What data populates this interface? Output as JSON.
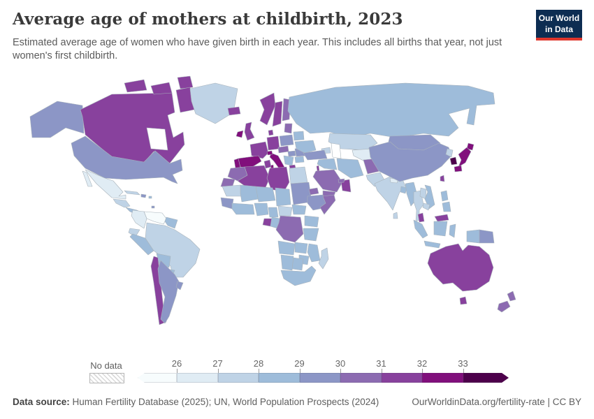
{
  "header": {
    "title": "Average age of mothers at childbirth, 2023",
    "subtitle": "Estimated average age of women who have given birth in each year. This includes all births that year, not just women's first childbirth.",
    "logo": {
      "line1": "Our World",
      "line2": "in Data",
      "bg_color": "#0d2d52",
      "accent_color": "#e0362c"
    }
  },
  "legend": {
    "no_data_label": "No data",
    "tick_labels": [
      "26",
      "27",
      "28",
      "29",
      "30",
      "31",
      "32",
      "33"
    ],
    "bin_colors": [
      "#f7fcfd",
      "#e0ecf4",
      "#bfd3e6",
      "#9ebcda",
      "#8c96c6",
      "#8c6bb1",
      "#88419d",
      "#810f7c",
      "#4d004b"
    ],
    "bin_ranges": [
      "<26",
      "26-27",
      "27-28",
      "28-29",
      "29-30",
      "30-31",
      "31-32",
      "32-33",
      ">33"
    ],
    "no_data_style": {
      "border": "#b5b5b5",
      "stripe": "#d9d9d9"
    }
  },
  "footer": {
    "source_label": "Data source:",
    "source_text": " Human Fertility Database (2025); UN, World Population Prospects (2024)",
    "credit_text": "OurWorldinData.org/fertility-rate | CC BY"
  },
  "map": {
    "stroke_color": "#a9b3bb",
    "ocean_color": "#ffffff"
  },
  "chart_data": {
    "type": "heatmap",
    "subtype": "choropleth-world-map",
    "title": "Average age of mothers at childbirth, 2023",
    "unit": "years",
    "bins": [
      "<26",
      "26-27",
      "27-28",
      "28-29",
      "29-30",
      "30-31",
      "31-32",
      "32-33",
      ">33"
    ],
    "bin_colors": [
      "#f7fcfd",
      "#e0ecf4",
      "#bfd3e6",
      "#9ebcda",
      "#8c96c6",
      "#8c6bb1",
      "#88419d",
      "#810f7c",
      "#4d004b"
    ],
    "no_data_label": "No data",
    "legend_position": "bottom",
    "regions": {
      "alaska": [
        "United States (Alaska)",
        4
      ],
      "canada": [
        "Canada",
        6
      ],
      "arctic-island-1": [
        "Canada",
        6
      ],
      "arctic-island-2": [
        "Canada",
        6
      ],
      "arctic-island-3": [
        "Canada",
        6
      ],
      "baffin": [
        "Canada",
        6
      ],
      "greenland": [
        "Greenland",
        2
      ],
      "usa": [
        "United States",
        4
      ],
      "mexico": [
        "Mexico",
        1
      ],
      "baja": [
        "Mexico",
        1
      ],
      "central-america-north": [
        "Guatemala/Honduras",
        2
      ],
      "central-america-south": [
        "Costa Rica/Panama",
        3
      ],
      "cuba": [
        "Cuba",
        2
      ],
      "hispaniola": [
        "Dominican Republic",
        4
      ],
      "puerto-rico": [
        "Puerto Rico",
        3
      ],
      "trinidad": [
        "Trinidad and Tobago",
        4
      ],
      "venezuela": [
        "Venezuela",
        0
      ],
      "colombia": [
        "Colombia",
        1
      ],
      "guianas": [
        "Guyana/Suriname",
        3
      ],
      "ecuador": [
        "Ecuador",
        2
      ],
      "peru": [
        "Peru",
        3
      ],
      "brazil": [
        "Brazil",
        2
      ],
      "bolivia": [
        "Bolivia",
        3
      ],
      "paraguay": [
        "Paraguay",
        3
      ],
      "chile": [
        "Chile",
        6
      ],
      "argentina": [
        "Argentina",
        4
      ],
      "uruguay": [
        "Uruguay",
        4
      ],
      "iceland": [
        "Iceland",
        6
      ],
      "ireland": [
        "Ireland",
        7
      ],
      "uk": [
        "United Kingdom",
        6
      ],
      "norway": [
        "Norway",
        6
      ],
      "sweden": [
        "Sweden",
        6
      ],
      "finland": [
        "Finland",
        5
      ],
      "denmark": [
        "Denmark",
        6
      ],
      "baltics": [
        "Baltic states",
        5
      ],
      "poland": [
        "Poland",
        4
      ],
      "germany": [
        "Germany",
        6
      ],
      "france": [
        "France",
        6
      ],
      "spain": [
        "Spain",
        7
      ],
      "portugal": [
        "Portugal",
        7
      ],
      "italy": [
        "Italy",
        7
      ],
      "sicily": [
        "Italy",
        7
      ],
      "sardinia": [
        "Italy",
        7
      ],
      "switzerland": [
        "Switzerland",
        7
      ],
      "austria-czechia": [
        "Austria/Czechia",
        5
      ],
      "hungary": [
        "Hungary",
        4
      ],
      "balkans": [
        "Western Balkans",
        3
      ],
      "romania": [
        "Romania",
        4
      ],
      "bulgaria": [
        "Bulgaria",
        3
      ],
      "greece": [
        "Greece",
        6
      ],
      "belarus": [
        "Belarus",
        3
      ],
      "ukraine": [
        "Ukraine",
        3
      ],
      "russia": [
        "Russia",
        3
      ],
      "kazakhstan": [
        "Kazakhstan",
        2
      ],
      "central-asia": [
        "Central Asia",
        1
      ],
      "caucasus": [
        "Caucasus",
        2
      ],
      "turkey": [
        "Turkey",
        4
      ],
      "syria-iraq": [
        "Syria/Iraq",
        3
      ],
      "israel": [
        "Israel",
        6
      ],
      "saudi-arabia": [
        "Saudi Arabia",
        5
      ],
      "yemen": [
        "Yemen",
        5
      ],
      "oman": [
        "Oman",
        6
      ],
      "uae": [
        "United Arab Emirates",
        5
      ],
      "iran": [
        "Iran",
        3
      ],
      "afghanistan": [
        "Afghanistan",
        5
      ],
      "pakistan": [
        "Pakistan",
        2
      ],
      "india": [
        "India",
        2
      ],
      "nepal": [
        "Nepal",
        1
      ],
      "bangladesh": [
        "Bangladesh",
        3
      ],
      "sri-lanka": [
        "Sri Lanka",
        2
      ],
      "mongolia": [
        "Mongolia",
        4
      ],
      "china": [
        "China",
        4
      ],
      "north-korea": [
        "North Korea",
        2
      ],
      "south-korea": [
        "South Korea",
        8
      ],
      "japan-hokkaido": [
        "Japan",
        7
      ],
      "japan-honshu": [
        "Japan",
        7
      ],
      "japan-kyushu": [
        "Japan",
        7
      ],
      "taiwan": [
        "Taiwan",
        6
      ],
      "myanmar": [
        "Myanmar",
        3
      ],
      "thailand": [
        "Thailand",
        2
      ],
      "laos": [
        "Laos",
        2
      ],
      "vietnam": [
        "Vietnam",
        3
      ],
      "cambodia": [
        "Cambodia",
        2
      ],
      "malaysia-peninsula": [
        "Malaysia",
        6
      ],
      "malaysia-borneo": [
        "Malaysia",
        6
      ],
      "sumatra": [
        "Indonesia",
        3
      ],
      "java": [
        "Indonesia",
        3
      ],
      "kalimantan": [
        "Indonesia",
        3
      ],
      "sulawesi": [
        "Indonesia",
        3
      ],
      "west-new-guinea": [
        "Indonesia",
        3
      ],
      "papua-new-guinea": [
        "Papua New Guinea",
        4
      ],
      "philippines-north": [
        "Philippines",
        3
      ],
      "philippines-south": [
        "Philippines",
        3
      ],
      "morocco": [
        "Morocco",
        5
      ],
      "western-sahara": [
        "Western Sahara",
        5
      ],
      "algeria": [
        "Algeria",
        6
      ],
      "tunisia": [
        "Tunisia",
        6
      ],
      "libya": [
        "Libya",
        6
      ],
      "egypt": [
        "Egypt",
        2
      ],
      "mauritania": [
        "Mauritania",
        2
      ],
      "mali": [
        "Mali",
        3
      ],
      "niger": [
        "Niger",
        3
      ],
      "chad": [
        "Chad",
        3
      ],
      "sudan": [
        "Sudan",
        4
      ],
      "eritrea": [
        "Eritrea",
        5
      ],
      "ethiopia": [
        "Ethiopia",
        4
      ],
      "somalia": [
        "Somalia",
        5
      ],
      "senegal-guinea": [
        "Senegal/Guinea",
        4
      ],
      "west-africa-coast": [
        "Ivory Coast/Ghana",
        3
      ],
      "nigeria": [
        "Nigeria",
        3
      ],
      "cameroon": [
        "Cameroon",
        3
      ],
      "central-african-republic": [
        "Central African Republic",
        2
      ],
      "south-sudan": [
        "South Sudan",
        3
      ],
      "gabon": [
        "Gabon",
        6
      ],
      "congo": [
        "Congo",
        3
      ],
      "dr-congo": [
        "Democratic Republic of Congo",
        5
      ],
      "kenya-uganda": [
        "Kenya/Uganda",
        3
      ],
      "tanzania": [
        "Tanzania",
        3
      ],
      "angola": [
        "Angola",
        3
      ],
      "zambia": [
        "Zambia",
        3
      ],
      "mozambique": [
        "Mozambique/Malawi",
        3
      ],
      "zimbabwe": [
        "Zimbabwe",
        3
      ],
      "namibia": [
        "Namibia",
        3
      ],
      "botswana": [
        "Botswana",
        3
      ],
      "south-africa": [
        "South Africa",
        3
      ],
      "madagascar": [
        "Madagascar",
        2
      ],
      "australia": [
        "Australia",
        6
      ],
      "tasmania": [
        "Australia",
        6
      ],
      "new-zealand-north": [
        "New Zealand",
        5
      ],
      "new-zealand-south": [
        "New Zealand",
        5
      ],
      "hudson-bay": [
        "water",
        -1
      ],
      "caspian-sea": [
        "water",
        -1
      ]
    }
  }
}
